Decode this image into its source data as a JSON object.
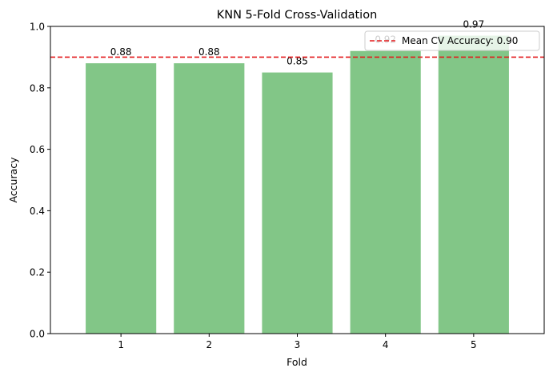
{
  "chart_data": {
    "type": "bar",
    "title": "KNN 5-Fold Cross-Validation",
    "xlabel": "Fold",
    "ylabel": "Accuracy",
    "categories": [
      "1",
      "2",
      "3",
      "4",
      "5"
    ],
    "values": [
      0.88,
      0.88,
      0.85,
      0.92,
      0.97
    ],
    "data_labels": [
      "0.88",
      "0.88",
      "0.85",
      "0.92",
      "0.97"
    ],
    "ylim": [
      0,
      1.0
    ],
    "yticks": [
      0.0,
      0.2,
      0.4,
      0.6,
      0.8,
      1.0
    ],
    "ytick_labels": [
      "0.0",
      "0.2",
      "0.4",
      "0.6",
      "0.8",
      "1.0"
    ],
    "bar_color": "#82c687",
    "mean_line": {
      "value": 0.9,
      "color": "#e31a1c",
      "style": "dashed",
      "label": "Mean CV Accuracy: 0.90"
    },
    "legend_position": "top-right",
    "grid": false
  }
}
